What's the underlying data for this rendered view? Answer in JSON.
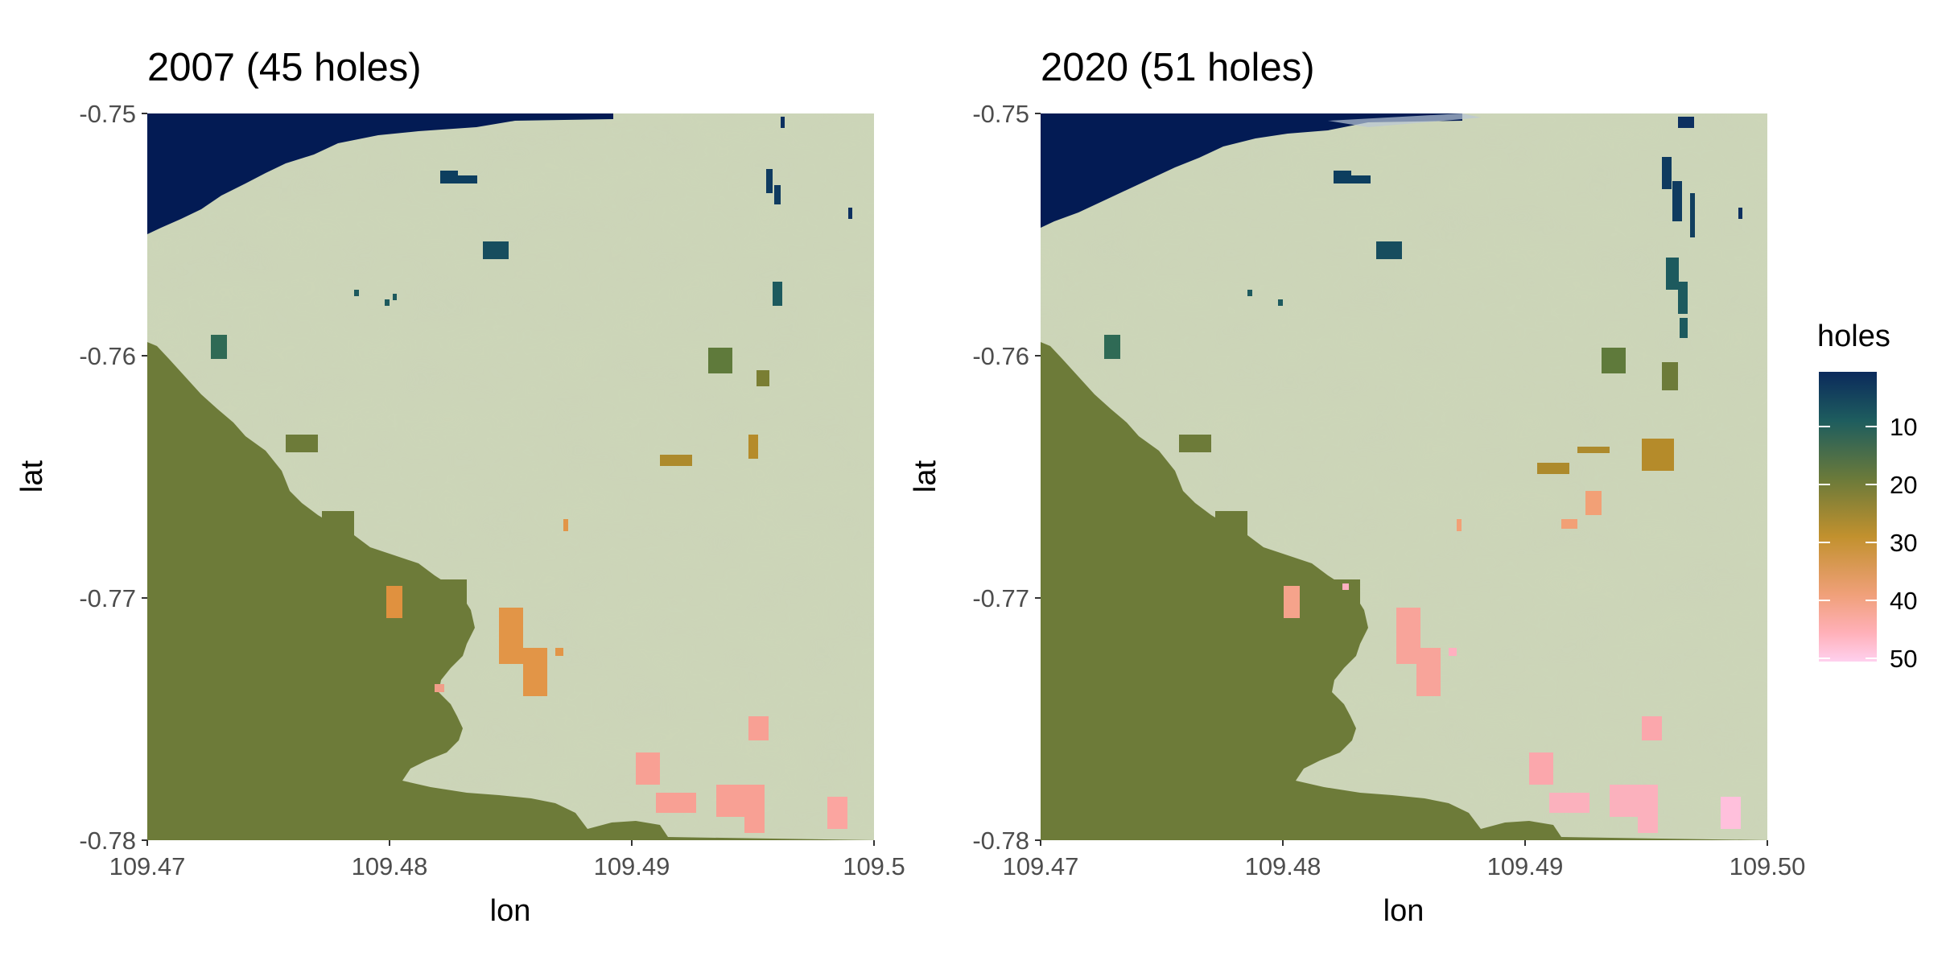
{
  "panels": [
    {
      "title": "2007 (45 holes)",
      "xlabel": "lon",
      "ylabel": "lat",
      "xlim": [
        109.47,
        109.5
      ],
      "ylim": [
        -0.78,
        -0.75
      ],
      "x_tick_labels": [
        "109.47",
        "109.48",
        "109.49",
        "109.5"
      ],
      "y_tick_labels": [
        "-0.75",
        "-0.76",
        "-0.77",
        "-0.78"
      ]
    },
    {
      "title": "2020 (51 holes)",
      "xlabel": "lon",
      "ylabel": "lat",
      "xlim": [
        109.47,
        109.5
      ],
      "ylim": [
        -0.78,
        -0.75
      ],
      "x_tick_labels": [
        "109.47",
        "109.48",
        "109.49",
        "109.50"
      ],
      "y_tick_labels": [
        "-0.75",
        "-0.76",
        "-0.77",
        "-0.78"
      ]
    }
  ],
  "legend": {
    "title": "holes",
    "tick_labels": [
      "10",
      "20",
      "30",
      "40",
      "50"
    ],
    "colors": [
      "#0b2a5c",
      "#1e5d5e",
      "#6b7a3a",
      "#c2912e",
      "#f0a07a",
      "#ffb0b8",
      "#ffd0ee"
    ]
  },
  "colors": {
    "basemap": "#cdd6b8",
    "water": "#031b54",
    "large_hole": "#6d7b39",
    "axis": "#333333"
  }
}
